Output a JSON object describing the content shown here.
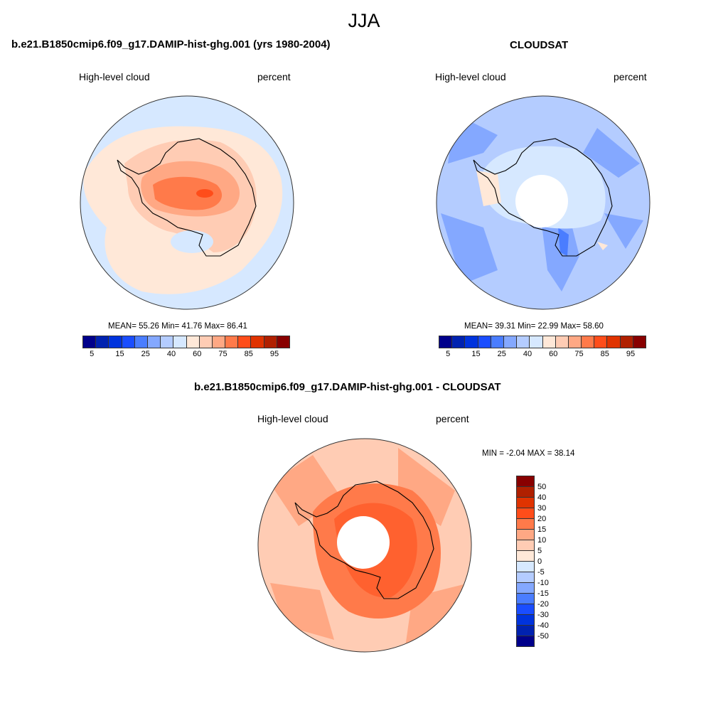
{
  "title": "JJA",
  "units": "percent",
  "colors": [
    "#00008b",
    "#0022b0",
    "#0033dd",
    "#1a4dff",
    "#4a7dff",
    "#84a8ff",
    "#b4ccff",
    "#d6e8ff",
    "#ffe8d8",
    "#ffccb4",
    "#ffa884",
    "#ff7a4a",
    "#ff4d1a",
    "#e03300",
    "#b02000",
    "#880000"
  ],
  "panels": [
    {
      "title": "b.e21.B1850cmip6.f09_g17.DAMIP-hist-ghg.001 (yrs 1980-2004)",
      "left_label": "High-level cloud",
      "right_label": "percent",
      "stats": "MEAN=  55.26  Min=  41.76  Max=  86.41"
    },
    {
      "title": "CLOUDSAT",
      "left_label": "High-level cloud",
      "right_label": "percent",
      "stats": "MEAN=  39.31  Min=  22.99  Max=  58.60"
    },
    {
      "title": "b.e21.B1850cmip6.f09_g17.DAMIP-hist-ghg.001 - CLOUDSAT",
      "left_label": "High-level cloud",
      "right_label": "percent",
      "stats": "MIN =  -2.04 MAX =  38.14"
    }
  ],
  "colorbar_abs_labels": [
    "5",
    "15",
    "25",
    "40",
    "60",
    "75",
    "85",
    "95"
  ],
  "colorbar_diff_labels": [
    "50",
    "40",
    "30",
    "20",
    "15",
    "10",
    "5",
    "0",
    "-5",
    "-10",
    "-15",
    "-20",
    "-30",
    "-40",
    "-50"
  ]
}
